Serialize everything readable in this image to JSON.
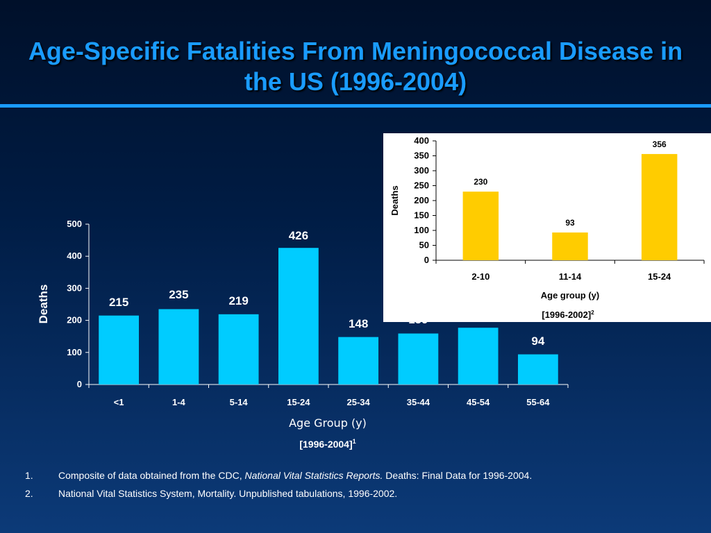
{
  "slide": {
    "title_line1": "Age-Specific Fatalities From Meningococcal Disease in",
    "title_line2": "the US (1996-2004)",
    "accent_color": "#1a9cff",
    "background_top": "#00102a",
    "background_bottom": "#0c3a78"
  },
  "chart_data": [
    {
      "type": "bar",
      "categories": [
        "<1",
        "1-4",
        "5-14",
        "15-24",
        "25-34",
        "35-44",
        "45-54",
        "55-64"
      ],
      "values": [
        215,
        235,
        219,
        426,
        148,
        159,
        177,
        94
      ],
      "xlabel": "Age Group (y)",
      "ylabel": "Deaths",
      "ylim": [
        0,
        500
      ],
      "yticks": [
        0,
        100,
        200,
        300,
        400,
        500
      ],
      "note": "[1996-2004]",
      "note_sup": "1",
      "bar_color": "#00ccff",
      "grid": false
    },
    {
      "type": "bar",
      "categories": [
        "2-10",
        "11-14",
        "15-24"
      ],
      "values": [
        230,
        93,
        356
      ],
      "xlabel": "Age group (y)",
      "ylabel": "Deaths",
      "ylim": [
        0,
        400
      ],
      "yticks": [
        0,
        50,
        100,
        150,
        200,
        250,
        300,
        350,
        400
      ],
      "note": "[1996-2002]",
      "note_sup": "2",
      "bar_color": "#ffcc00",
      "background": "#ffffff",
      "grid": false
    }
  ],
  "footnotes": [
    {
      "num": "1.",
      "pre": "Composite of data obtained from the CDC, ",
      "italic": "National Vital Statistics Reports.",
      "post": " Deaths: Final Data for 1996-2004."
    },
    {
      "num": "2.",
      "pre": "National Vital Statistics System, Mortality. Unpublished tabulations, 1996-2002.",
      "italic": "",
      "post": ""
    }
  ]
}
